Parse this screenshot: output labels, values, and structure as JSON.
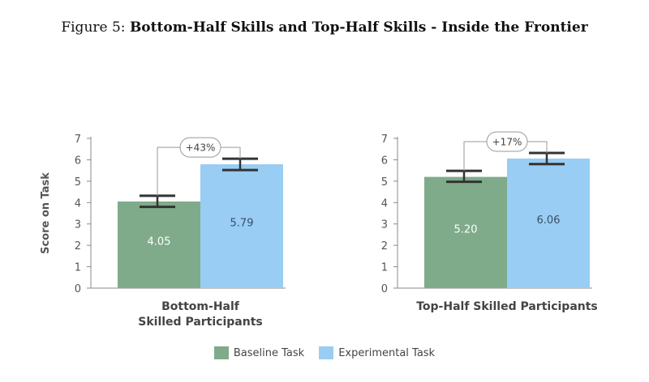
{
  "figure": {
    "prefix": "Figure 5:",
    "title": "Bottom-Half Skills and Top-Half Skills - Inside the Frontier"
  },
  "colors": {
    "baseline": "#7fab8a",
    "experimental": "#99cdf3",
    "errorbar": "#333333"
  },
  "chart_data": [
    {
      "type": "bar",
      "ylabel": "Score on Task",
      "ylim": [
        0,
        7
      ],
      "yticks": [
        0,
        1,
        2,
        3,
        4,
        5,
        6,
        7
      ],
      "category_lines": [
        "Bottom-Half",
        "Skilled Participants"
      ],
      "series": [
        {
          "name": "Baseline Task",
          "value": 4.05,
          "label": "4.05",
          "error": [
            3.8,
            4.32
          ]
        },
        {
          "name": "Experimental Task",
          "value": 5.79,
          "label": "5.79",
          "error": [
            5.52,
            6.05
          ]
        }
      ],
      "annotation": "+43%"
    },
    {
      "type": "bar",
      "ylabel": "",
      "ylim": [
        0,
        7
      ],
      "yticks": [
        0,
        1,
        2,
        3,
        4,
        5,
        6,
        7
      ],
      "category_lines": [
        "Top-Half Skilled Participants"
      ],
      "series": [
        {
          "name": "Baseline Task",
          "value": 5.2,
          "label": "5.20",
          "error": [
            4.97,
            5.48
          ]
        },
        {
          "name": "Experimental Task",
          "value": 6.06,
          "label": "6.06",
          "error": [
            5.8,
            6.32
          ]
        }
      ],
      "annotation": "+17%"
    }
  ],
  "legend": [
    {
      "label": "Baseline Task"
    },
    {
      "label": "Experimental Task"
    }
  ]
}
